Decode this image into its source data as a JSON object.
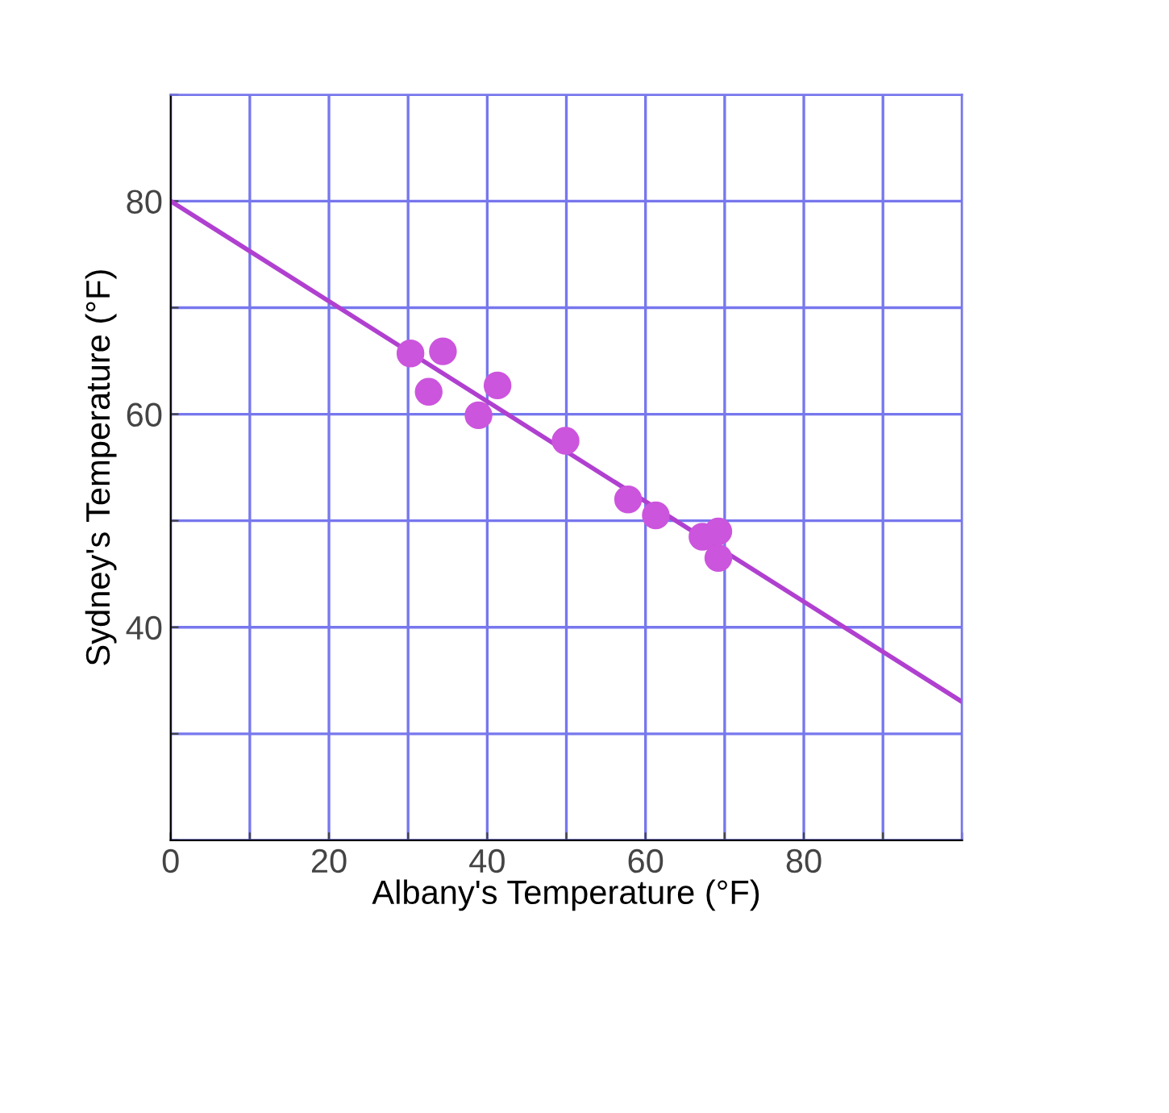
{
  "chart_data": {
    "type": "scatter",
    "xlabel": "Albany's Temperature (°F)",
    "ylabel": "Sydney's Temperature (°F)",
    "xlim": [
      0,
      100
    ],
    "ylim": [
      20,
      90
    ],
    "xticks": [
      0,
      {
        "value": 10,
        "label": null
      },
      20,
      {
        "value": 30,
        "label": null
      },
      40,
      {
        "value": 50,
        "label": null
      },
      60,
      {
        "value": 70,
        "label": null
      },
      80,
      {
        "value": 90,
        "label": null
      },
      {
        "value": 100,
        "label": null
      }
    ],
    "yticks": [
      {
        "value": 20,
        "label": null
      },
      {
        "value": 30,
        "label": null
      },
      40,
      {
        "value": 50,
        "label": null
      },
      60,
      {
        "value": 70,
        "label": null
      },
      80,
      {
        "value": 90,
        "label": null
      }
    ],
    "grid": true,
    "series": [
      {
        "marker": "circle",
        "color": "#cc55dd",
        "x": [
          30.3,
          34.4,
          32.6,
          41.3,
          38.9,
          49.9,
          57.8,
          61.3,
          67.2,
          69.2,
          69.2
        ],
        "values": [
          65.7,
          65.9,
          62.1,
          62.7,
          59.9,
          57.5,
          52.0,
          50.5,
          48.5,
          49.0,
          46.5
        ]
      },
      {
        "type": "line",
        "color": "#b040d0",
        "x": [
          0,
          100
        ],
        "values": [
          80,
          33
        ]
      }
    ]
  }
}
